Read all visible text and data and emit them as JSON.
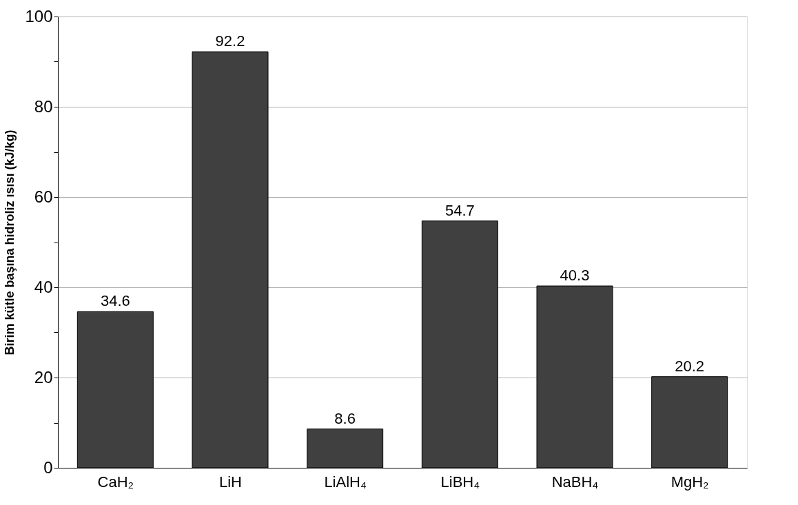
{
  "chart_data": {
    "type": "bar",
    "ylabel": "Birim kütle başına hidroliz ısısı (kJ/kg)",
    "categories": [
      "CaH₂",
      "LiH",
      "LiAlH₄",
      "LiBH₄",
      "NaBH₄",
      "MgH₂"
    ],
    "values": [
      34.6,
      92.2,
      8.6,
      54.7,
      40.3,
      20.2
    ],
    "color": "#404040",
    "ylim": [
      0,
      100
    ],
    "yticks": [
      0,
      {
        "value": 10,
        "label": null
      },
      20,
      {
        "value": 30,
        "label": null
      },
      40,
      {
        "value": 50,
        "label": null
      },
      60,
      {
        "value": 70,
        "label": null
      },
      80,
      {
        "value": 90,
        "label": null
      },
      100
    ],
    "grid": "y",
    "data_labels": true
  }
}
